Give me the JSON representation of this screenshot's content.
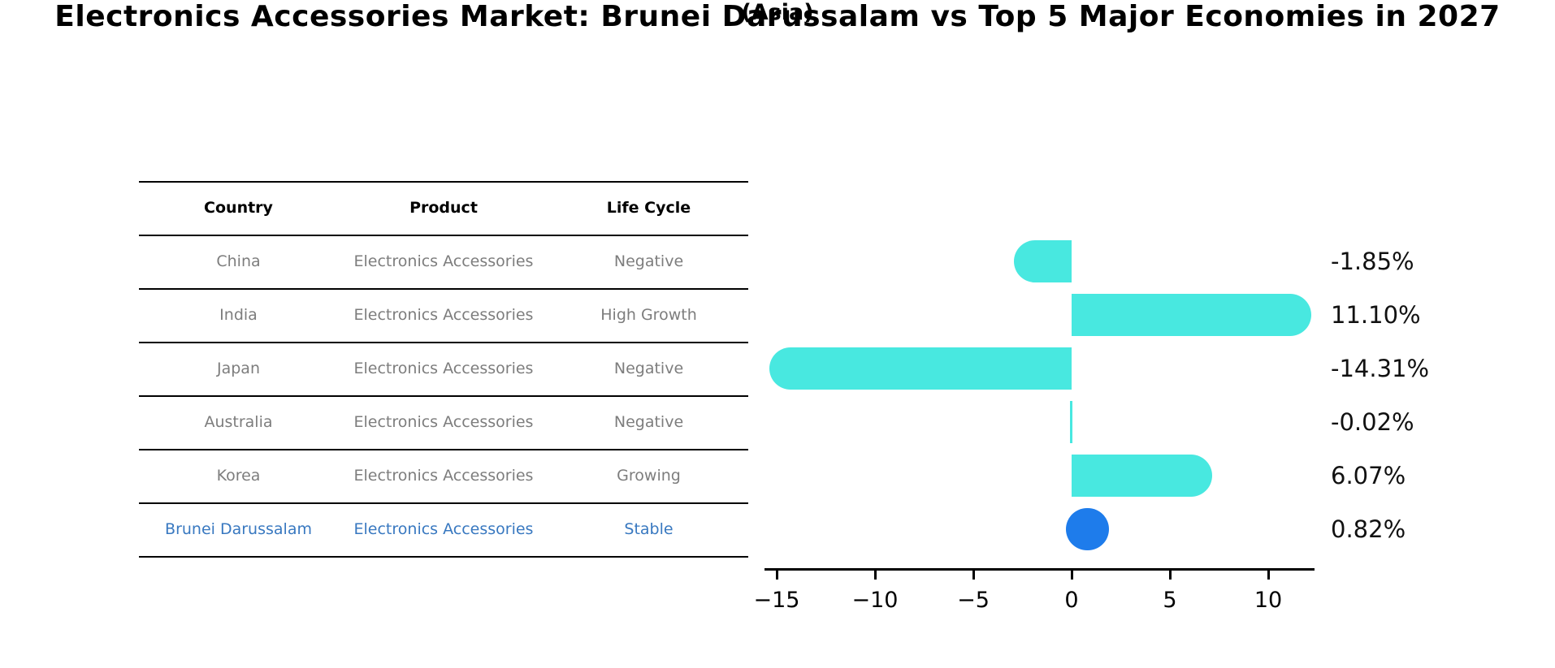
{
  "title": "Electronics Accessories Market: Brunei Darussalam vs Top 5 Major Economies in 2027",
  "subtitle": "(Asia)",
  "table": {
    "headers": [
      "Country",
      "Product",
      "Life Cycle"
    ]
  },
  "colors": {
    "bar_default": "#48e8e0",
    "bar_highlight": "#1e7ceb",
    "highlight_text": "#3878c0",
    "body_text": "#7d7d7d",
    "header_text": "#000000"
  },
  "chart_data": {
    "type": "bar",
    "orientation": "horizontal",
    "title": "Electronics Accessories Market: Brunei Darussalam vs Top 5 Major Economies in 2027 (Asia)",
    "categories": [
      "China",
      "India",
      "Japan",
      "Australia",
      "Korea",
      "Brunei Darussalam"
    ],
    "values": [
      -1.85,
      11.1,
      -14.31,
      -0.02,
      6.07,
      0.82
    ],
    "xlabel": "",
    "ylabel": "",
    "xlim": [
      -15.6,
      12.3
    ],
    "grid": false,
    "legend": false,
    "x_ticks": [
      {
        "value": -15,
        "label": "−15"
      },
      {
        "value": -10,
        "label": "−10"
      },
      {
        "value": -5,
        "label": "−5"
      },
      {
        "value": 0,
        "label": "0"
      },
      {
        "value": 5,
        "label": "5"
      },
      {
        "value": 10,
        "label": "10"
      }
    ],
    "rows": [
      {
        "country": "China",
        "product": "Electronics Accessories",
        "life_cycle": "Negative",
        "value": -1.85,
        "value_label": "-1.85%",
        "highlight": false
      },
      {
        "country": "India",
        "product": "Electronics Accessories",
        "life_cycle": "High Growth",
        "value": 11.1,
        "value_label": "11.10%",
        "highlight": false
      },
      {
        "country": "Japan",
        "product": "Electronics Accessories",
        "life_cycle": "Negative",
        "value": -14.31,
        "value_label": "-14.31%",
        "highlight": false
      },
      {
        "country": "Australia",
        "product": "Electronics Accessories",
        "life_cycle": "Negative",
        "value": -0.02,
        "value_label": "-0.02%",
        "highlight": false
      },
      {
        "country": "Korea",
        "product": "Electronics Accessories",
        "life_cycle": "Growing",
        "value": 6.07,
        "value_label": "6.07%",
        "highlight": false
      },
      {
        "country": "Brunei Darussalam",
        "product": "Electronics Accessories",
        "life_cycle": "Stable",
        "value": 0.82,
        "value_label": "0.82%",
        "highlight": true
      }
    ]
  }
}
